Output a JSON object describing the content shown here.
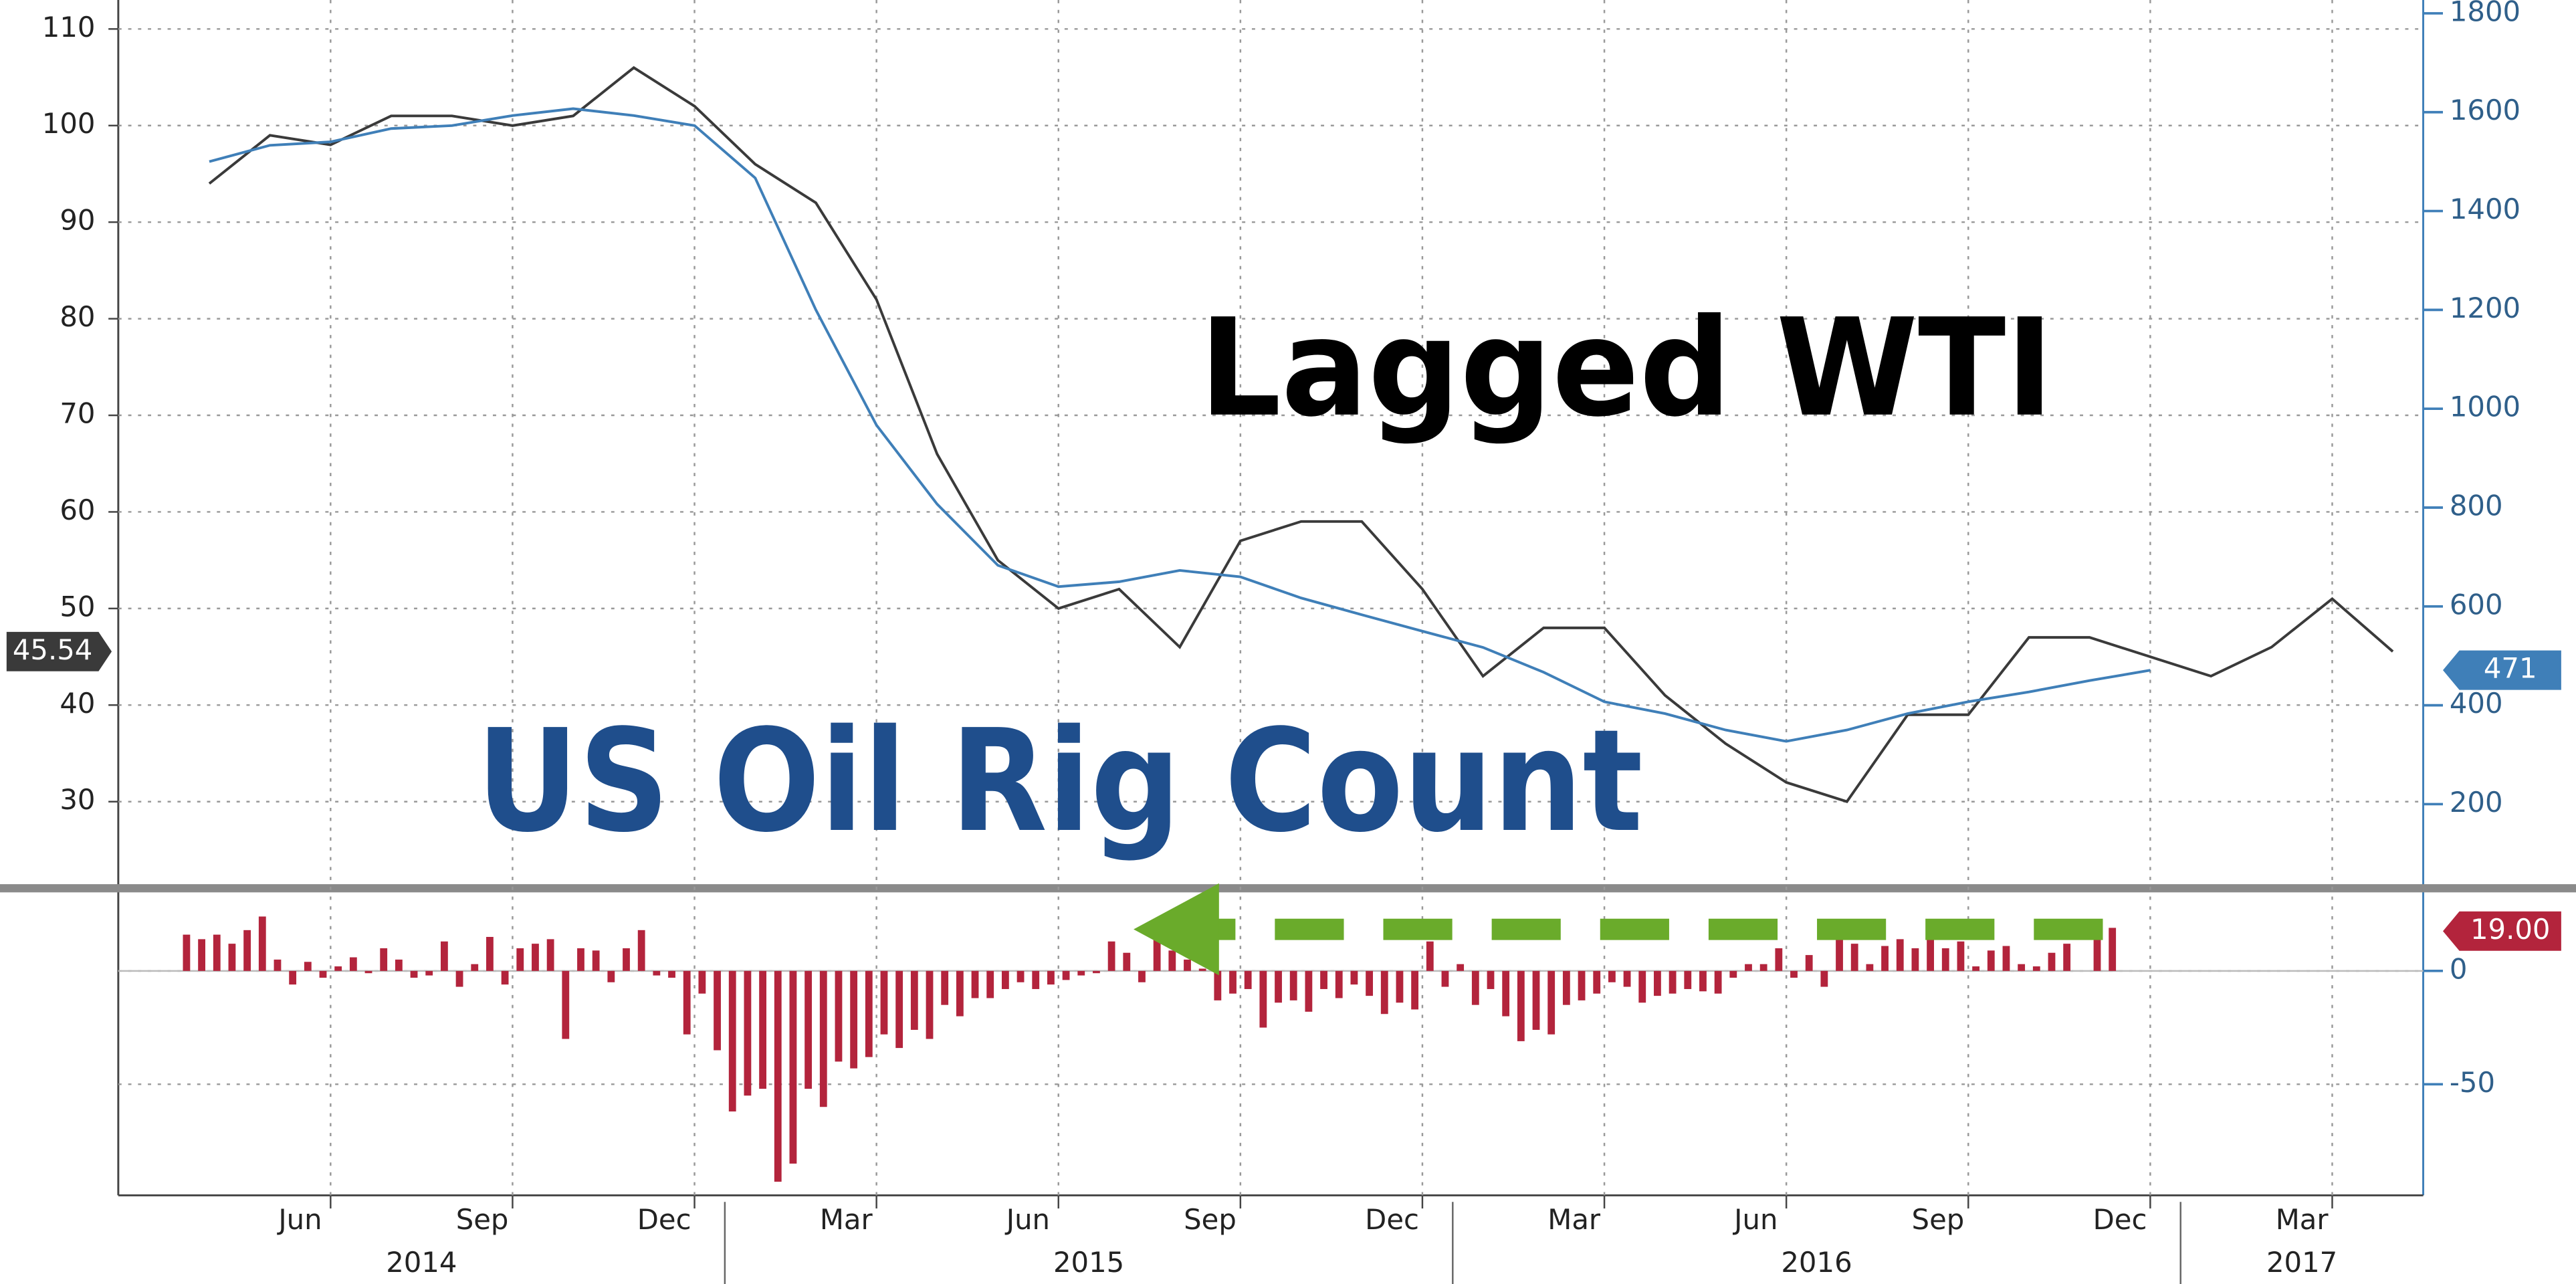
{
  "chart_data": [
    {
      "type": "line",
      "annotations": [
        "Lagged WTI",
        "US Oil Rig Count"
      ],
      "x": [
        "2014-04",
        "2014-05",
        "2014-06",
        "2014-07",
        "2014-08",
        "2014-09",
        "2014-10",
        "2014-11",
        "2014-12",
        "2015-01",
        "2015-02",
        "2015-03",
        "2015-04",
        "2015-05",
        "2015-06",
        "2015-07",
        "2015-08",
        "2015-09",
        "2015-10",
        "2015-11",
        "2015-12",
        "2016-01",
        "2016-02",
        "2016-03",
        "2016-04",
        "2016-05",
        "2016-06",
        "2016-07",
        "2016-08",
        "2016-09",
        "2016-10",
        "2016-11",
        "2016-12",
        "2017-01",
        "2017-02",
        "2017-03",
        "2017-04"
      ],
      "xlim": [
        "2014-03",
        "2017-05"
      ],
      "ylim": [
        21.2,
        113
      ],
      "yticks": [
        30,
        40,
        50,
        60,
        70,
        80,
        90,
        100,
        110
      ],
      "y2lim": [
        33,
        1827
      ],
      "y2ticks": [
        200,
        400,
        600,
        800,
        1000,
        1200,
        1400,
        1600,
        1800
      ],
      "grid": true,
      "series": [
        {
          "color": "#3a3a3a",
          "axis": "y",
          "badge": "45.54",
          "badge_color": "#3a3a3a",
          "values": [
            94,
            99,
            98,
            101,
            101,
            100,
            101,
            106,
            102,
            96,
            92,
            82,
            66,
            55,
            50,
            52,
            46,
            57,
            59,
            59,
            52,
            43,
            48,
            48,
            41,
            36,
            32,
            30,
            39,
            39,
            47,
            47,
            45,
            43,
            46,
            51,
            45.54
          ]
        },
        {
          "color": "#3f7fb8",
          "axis": "y2",
          "badge": "471",
          "badge_color": "#3f7fb8",
          "values": [
            1500,
            1533,
            1540,
            1567,
            1573,
            1593,
            1607,
            1593,
            1573,
            1467,
            1200,
            967,
            807,
            683,
            640,
            650,
            673,
            660,
            617,
            583,
            550,
            517,
            467,
            407,
            383,
            350,
            327,
            350,
            383,
            407,
            427,
            450,
            471,
            null,
            null,
            null,
            null
          ]
        }
      ]
    },
    {
      "type": "bar",
      "color": "#b3243c",
      "badge": "19.00",
      "badge_color": "#b3243c",
      "x": [
        "2014-04",
        "2014-05",
        "2014-06",
        "2014-07",
        "2014-08",
        "2014-09",
        "2014-10",
        "2014-11",
        "2014-12",
        "2015-01",
        "2015-02",
        "2015-03",
        "2015-04",
        "2015-05",
        "2015-06",
        "2015-07",
        "2015-08",
        "2015-09",
        "2015-10",
        "2015-11",
        "2015-12",
        "2016-01",
        "2016-02",
        "2016-03",
        "2016-04",
        "2016-05",
        "2016-06",
        "2016-07",
        "2016-08",
        "2016-09",
        "2016-10",
        "2016-11"
      ],
      "values": [
        [
          16,
          14,
          16,
          12
        ],
        [
          18,
          24,
          5,
          -6
        ],
        [
          4,
          -3,
          2,
          6
        ],
        [
          -1,
          10,
          5,
          -3
        ],
        [
          -2,
          13,
          -7,
          3
        ],
        [
          15,
          -6,
          10,
          12
        ],
        [
          14,
          -30,
          10,
          9
        ],
        [
          -5,
          10,
          18,
          -2
        ],
        [
          -3,
          -28,
          -10,
          -35
        ],
        [
          -62,
          -55,
          -52,
          -93
        ],
        [
          -85,
          -52,
          -60,
          -40
        ],
        [
          -43,
          -38,
          -28,
          -34
        ],
        [
          -26,
          -30,
          -15,
          -20
        ],
        [
          -12,
          -12,
          -8,
          -5
        ],
        [
          -8,
          -6,
          -4,
          -2
        ],
        [
          -1,
          13,
          8,
          -5
        ],
        [
          21,
          9,
          5,
          1
        ],
        [
          -13,
          -10,
          -8,
          -25
        ],
        [
          -14,
          -13,
          -18,
          -8
        ],
        [
          -12,
          -6,
          -11,
          -19
        ],
        [
          -14,
          -17,
          13,
          -7
        ],
        [
          3,
          -15,
          -8,
          -20
        ],
        [
          -31,
          -26,
          -28,
          -15
        ],
        [
          -13,
          -10,
          -5,
          -7
        ],
        [
          -14,
          -11,
          -10,
          -8
        ],
        [
          -9,
          -10,
          -3,
          3
        ],
        [
          3,
          10,
          -3,
          7
        ],
        [
          -7,
          15,
          12,
          3
        ],
        [
          11,
          14,
          10,
          15
        ],
        [
          10,
          13,
          2,
          9
        ],
        [
          11,
          3,
          2,
          8
        ],
        [
          12,
          0,
          14,
          19
        ]
      ],
      "xlim": [
        "2014-03",
        "2017-05"
      ],
      "ylim": [
        -99,
        35
      ],
      "yticks": [
        0,
        -50
      ],
      "xticks": [
        {
          "value": "2014-06",
          "label": "Jun"
        },
        {
          "value": "2014-09",
          "label": "Sep"
        },
        {
          "value": "2014-12",
          "label": "Dec"
        },
        {
          "value": "2015-03",
          "label": "Mar"
        },
        {
          "value": "2015-06",
          "label": "Jun"
        },
        {
          "value": "2015-09",
          "label": "Sep"
        },
        {
          "value": "2015-12",
          "label": "Dec"
        },
        {
          "value": "2016-03",
          "label": "Mar"
        },
        {
          "value": "2016-06",
          "label": "Jun"
        },
        {
          "value": "2016-09",
          "label": "Sep"
        },
        {
          "value": "2016-12",
          "label": "Dec"
        },
        {
          "value": "2017-03",
          "label": "Mar"
        }
      ],
      "years": [
        "2014",
        "2015",
        "2016",
        "2017"
      ]
    }
  ]
}
